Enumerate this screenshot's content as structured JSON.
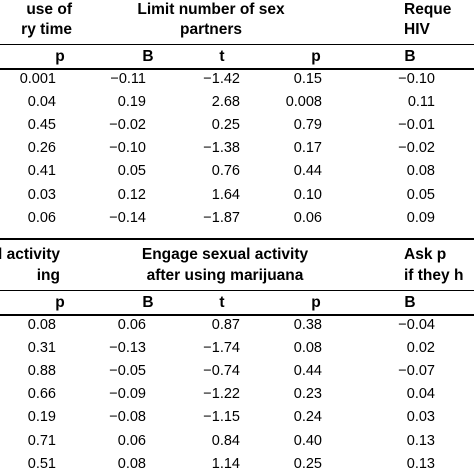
{
  "top": {
    "headers": [
      {
        "lines": [
          "use of",
          "ry time"
        ]
      },
      {
        "lines": [
          "Limit number of sex",
          "partners"
        ]
      },
      {
        "lines": [
          "Reque",
          "HIV "
        ]
      }
    ],
    "columns": [
      "p",
      "B",
      "t",
      "p",
      "B"
    ],
    "rows": [
      [
        "0.001",
        "-0.11",
        "-1.42",
        "0.15",
        "-0.10"
      ],
      [
        "0.04",
        "0.19",
        "2.68",
        "0.008",
        "0.11"
      ],
      [
        "0.45",
        "-0.02",
        "0.25",
        "0.79",
        "-0.01"
      ],
      [
        "0.26",
        "-0.10",
        "-1.38",
        "0.17",
        "-0.02"
      ],
      [
        "0.41",
        "0.05",
        "0.76",
        "0.44",
        "0.08"
      ],
      [
        "0.03",
        "0.12",
        "1.64",
        "0.10",
        "0.05"
      ],
      [
        "0.06",
        "-0.14",
        "-1.87",
        "0.06",
        "0.09"
      ]
    ]
  },
  "bottom": {
    "headers": [
      {
        "lines": [
          "l activity",
          "ing"
        ]
      },
      {
        "lines": [
          "Engage sexual activity",
          "after using marijuana"
        ]
      },
      {
        "lines": [
          "Ask p",
          "if they h"
        ]
      }
    ],
    "columns": [
      "p",
      "B",
      "t",
      "p",
      "B"
    ],
    "rows": [
      [
        "0.08",
        "0.06",
        "0.87",
        "0.38",
        "-0.04"
      ],
      [
        "0.31",
        "-0.13",
        "-1.74",
        "0.08",
        "0.02"
      ],
      [
        "0.88",
        "-0.05",
        "-0.74",
        "0.44",
        "-0.07"
      ],
      [
        "0.66",
        "-0.09",
        "-1.22",
        "0.23",
        "0.04"
      ],
      [
        "0.19",
        "-0.08",
        "-1.15",
        "0.24",
        "0.03"
      ],
      [
        "0.71",
        "0.06",
        "0.84",
        "0.40",
        "0.13"
      ],
      [
        "0.51",
        "0.08",
        "1.14",
        "0.25",
        "0.13"
      ]
    ]
  }
}
